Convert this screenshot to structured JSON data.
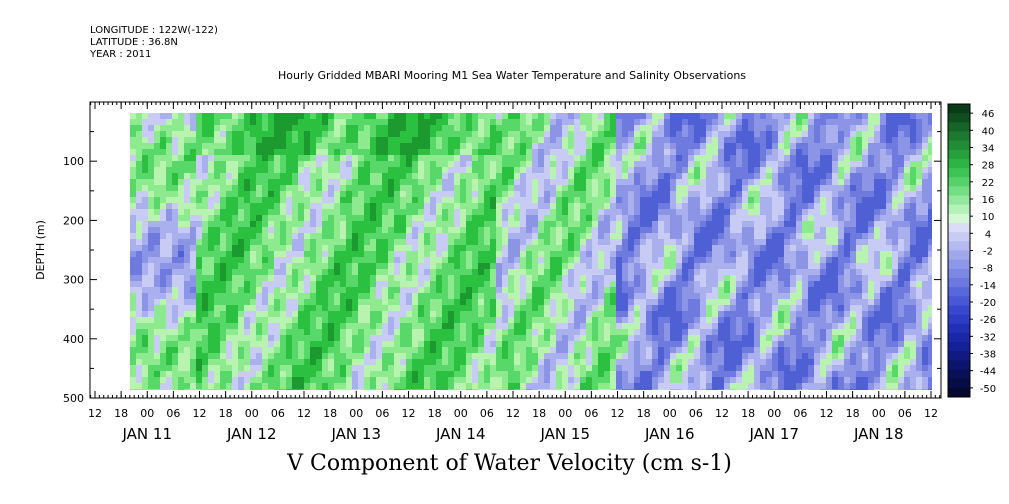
{
  "header": {
    "longitude": "LONGITUDE : 122W(-122)",
    "latitude": "LATITUDE : 36.8N",
    "year": "YEAR : 2011",
    "title": "Hourly Gridded MBARI Mooring M1 Sea Water Temperature and Salinity Observations"
  },
  "footer": {
    "title": "V Component of Water Velocity (cm s-1)"
  },
  "chart_data": {
    "type": "heatmap",
    "title": "Hourly Gridded MBARI Mooring M1 Sea Water Temperature and Salinity Observations",
    "zlabel": "V Component of Water Velocity (cm s-1)",
    "ylabel": "DEPTH (m)",
    "ylim": [
      500,
      0
    ],
    "y_ticks": [
      100,
      200,
      300,
      400,
      500
    ],
    "x_range_hours": [
      "JAN 11 09",
      "JAN 18 13"
    ],
    "x_hour_ticks": [
      "12",
      "18",
      "00",
      "06",
      "12",
      "18",
      "00",
      "06",
      "12",
      "18",
      "00",
      "06",
      "12",
      "18",
      "00",
      "06",
      "12",
      "18",
      "00",
      "06",
      "12",
      "18",
      "00",
      "06",
      "12",
      "18",
      "00",
      "06",
      "12",
      "18",
      "00",
      "06",
      "12"
    ],
    "x_day_labels": [
      "JAN 11",
      "JAN 12",
      "JAN 13",
      "JAN 14",
      "JAN 15",
      "JAN 16",
      "JAN 17",
      "JAN 18"
    ],
    "colorbar_labels": [
      "46",
      "40",
      "34",
      "28",
      "22",
      "16",
      "10",
      "4",
      "-2",
      "-8",
      "-14",
      "-20",
      "-26",
      "-32",
      "-38",
      "-44",
      "-50"
    ],
    "data_extent": {
      "start": "JAN 11 ~17h",
      "end": "JAN 18 ~11h",
      "depth_top_m": 20,
      "depth_bottom_m": 490
    },
    "dominant_pattern": [
      {
        "period": "JAN 11 18 - JAN 12 00",
        "sign": "mixed",
        "note": "positive (green) 100-200 m and 300-450 m"
      },
      {
        "period": "JAN 12 - JAN 14",
        "sign": "positive",
        "note": "widespread green, strongest near surface JAN 13-14 (~20 cm s-1)"
      },
      {
        "period": "JAN 15 - JAN 18",
        "sign": "negative",
        "note": "mostly blue (-10 to -25 cm s-1) with scattered weak positive patches"
      }
    ],
    "colors": {
      "positive_strong": "#1eb83c",
      "positive_weak": "#a8f0a8",
      "negative_weak": "#b4b8f0",
      "negative_strong": "#3c50d8"
    }
  }
}
